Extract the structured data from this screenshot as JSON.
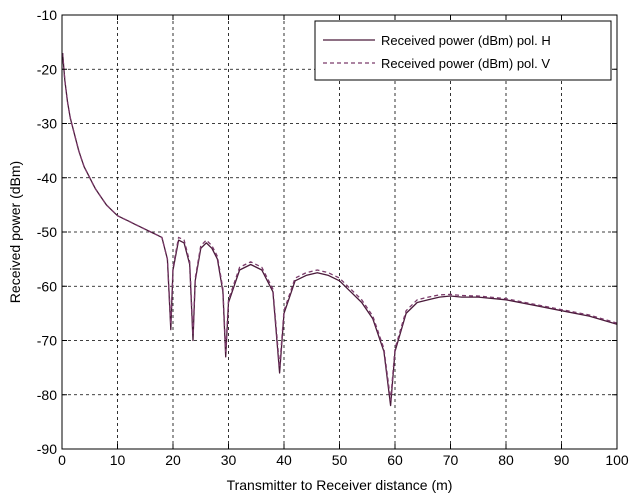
{
  "chart_data": {
    "type": "line",
    "title": "",
    "xlabel": "Transmitter to Receiver distance (m)",
    "ylabel": "Received power (dBm)",
    "xlim": [
      0,
      100
    ],
    "ylim": [
      -90,
      -10
    ],
    "xticks": [
      0,
      10,
      20,
      30,
      40,
      50,
      60,
      70,
      80,
      90,
      100
    ],
    "yticks": [
      -10,
      -20,
      -30,
      -40,
      -50,
      -60,
      -70,
      -80,
      -90
    ],
    "grid": true,
    "legend_position": "top-right",
    "series": [
      {
        "name": "Received power (dBm) pol. H",
        "line_style": "solid",
        "color": "#4a1a3a",
        "x": [
          0.1,
          0.5,
          1,
          1.5,
          2,
          2.5,
          3,
          3.5,
          4,
          4.5,
          5,
          5.5,
          6,
          7,
          8,
          9,
          10,
          11,
          12,
          13,
          14,
          15,
          16,
          17,
          18,
          19,
          19.6,
          20,
          21,
          22,
          23,
          23.6,
          24,
          25,
          26,
          27,
          28,
          29,
          29.5,
          30,
          32,
          34,
          36,
          38,
          39.2,
          40,
          42,
          44,
          46,
          48,
          50,
          52,
          54,
          56,
          58,
          59.2,
          60,
          62,
          64,
          66,
          68,
          70,
          72,
          75,
          80,
          85,
          90,
          95,
          100
        ],
        "y": [
          -17,
          -22,
          -26,
          -29,
          -31,
          -33,
          -35,
          -36.5,
          -38,
          -39,
          -40,
          -41,
          -42,
          -43.5,
          -45,
          -46,
          -47,
          -47.5,
          -48,
          -48.5,
          -49,
          -49.5,
          -50,
          -50.5,
          -51,
          -55,
          -68,
          -57,
          -51.5,
          -52,
          -56,
          -70,
          -59,
          -53,
          -52,
          -53,
          -55,
          -61,
          -73,
          -63,
          -57,
          -56,
          -57,
          -61,
          -76,
          -65,
          -59,
          -58,
          -57.5,
          -58,
          -59,
          -61,
          -63,
          -66,
          -72,
          -82,
          -72,
          -65,
          -63,
          -62.5,
          -62,
          -61.8,
          -62,
          -62,
          -62.5,
          -63.5,
          -64.5,
          -65.5,
          -67
        ]
      },
      {
        "name": "Received power (dBm) pol. V",
        "line_style": "dashed",
        "color": "#7a3a6a",
        "x": [
          0.1,
          0.5,
          1,
          1.5,
          2,
          2.5,
          3,
          3.5,
          4,
          4.5,
          5,
          5.5,
          6,
          7,
          8,
          9,
          10,
          11,
          12,
          13,
          14,
          15,
          16,
          17,
          18,
          19,
          19.6,
          20,
          21,
          22,
          23,
          23.6,
          24,
          25,
          26,
          27,
          28,
          29,
          29.5,
          30,
          32,
          34,
          36,
          38,
          39.2,
          40,
          42,
          44,
          46,
          48,
          50,
          52,
          54,
          56,
          58,
          59.2,
          60,
          62,
          64,
          66,
          68,
          70,
          72,
          75,
          80,
          85,
          90,
          95,
          100
        ],
        "y": [
          -17,
          -22,
          -26,
          -29,
          -31,
          -33,
          -35,
          -36.5,
          -38,
          -39,
          -40,
          -41,
          -42,
          -43.5,
          -45,
          -46,
          -47,
          -47.5,
          -48,
          -48.5,
          -49,
          -49.5,
          -50,
          -50.5,
          -51,
          -55,
          -67,
          -56.5,
          -51,
          -51.5,
          -55.5,
          -69,
          -58.5,
          -52.5,
          -51.5,
          -52.5,
          -54.5,
          -60.5,
          -72,
          -62.5,
          -56.5,
          -55.5,
          -56.5,
          -60.5,
          -75,
          -64.5,
          -58.5,
          -57.5,
          -57,
          -57.5,
          -58.5,
          -60.5,
          -62.5,
          -65.5,
          -71.5,
          -81,
          -71.5,
          -64.5,
          -62.5,
          -62,
          -61.6,
          -61.5,
          -61.7,
          -61.8,
          -62.3,
          -63.3,
          -64.3,
          -65.3,
          -66.8
        ]
      }
    ]
  }
}
